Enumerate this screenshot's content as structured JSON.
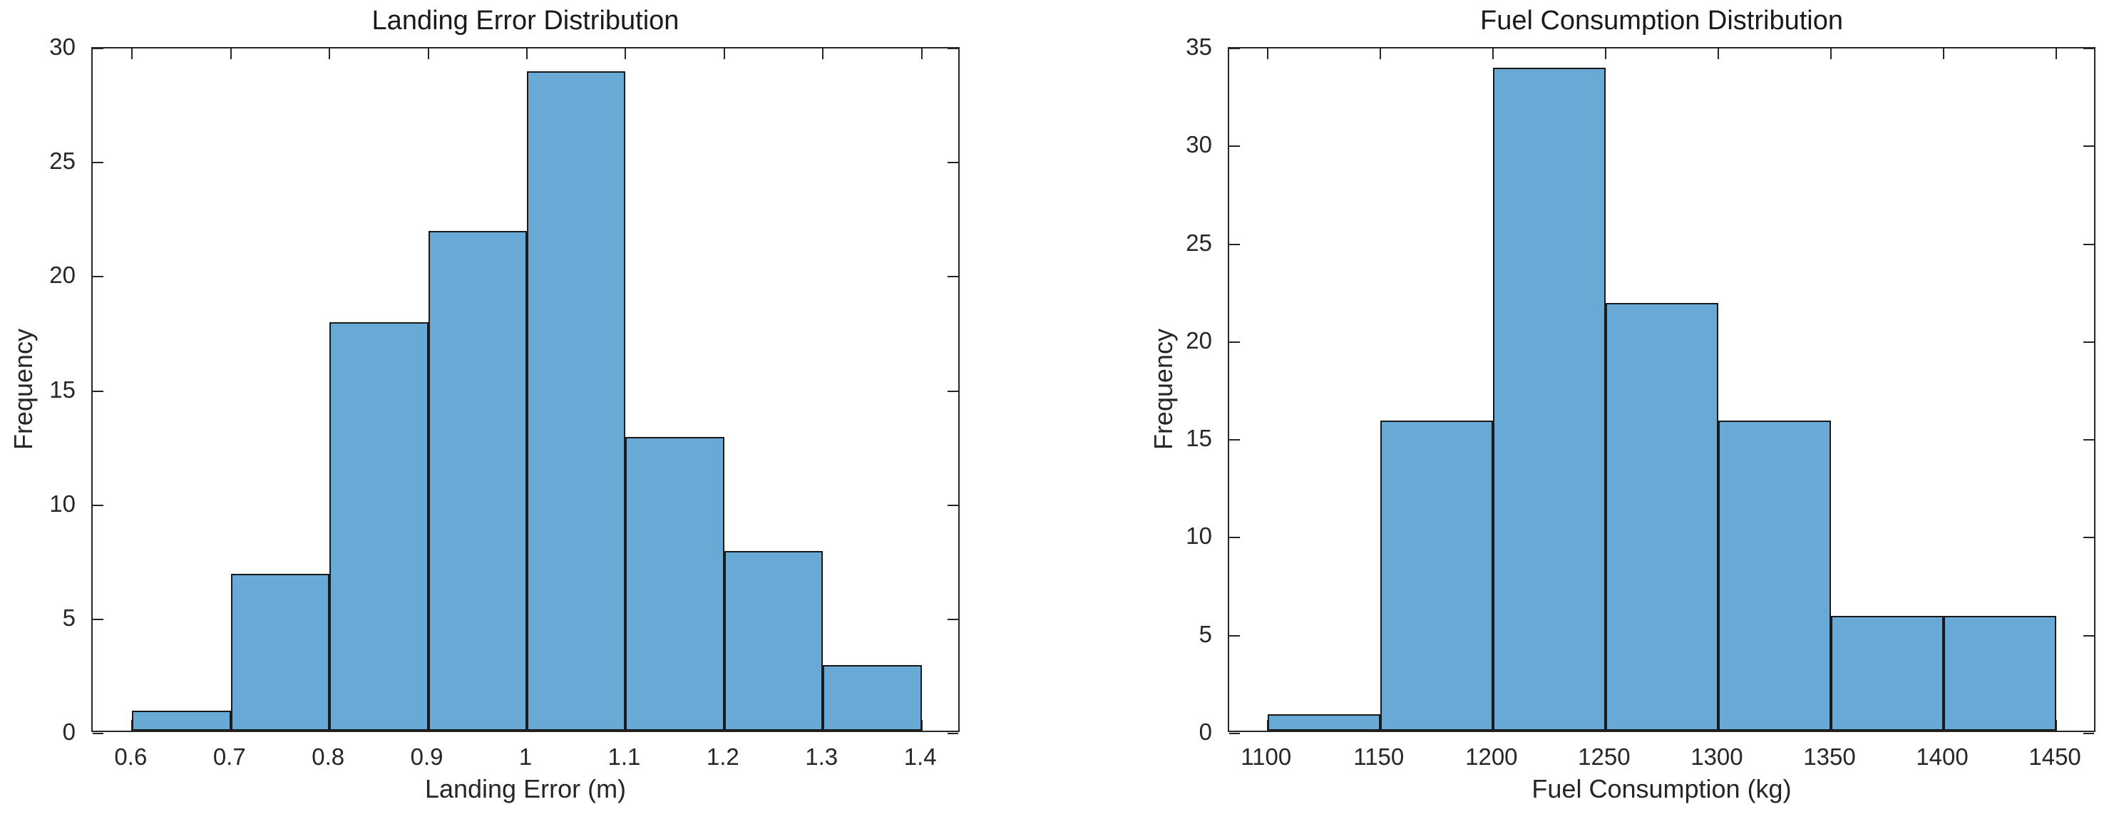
{
  "figure": {
    "background": "#ffffff",
    "axis_color": "#262626",
    "tick_label_color": "#262626",
    "title_color": "#1a1a1a"
  },
  "chart_data": [
    {
      "type": "bar",
      "subtype": "histogram",
      "title": "Landing Error Distribution",
      "xlabel": "Landing Error (m)",
      "ylabel": "Frequency",
      "bin_edges": [
        0.6,
        0.7,
        0.8,
        0.9,
        1.0,
        1.1,
        1.2,
        1.3,
        1.4
      ],
      "counts": [
        1,
        7,
        18,
        22,
        29,
        13,
        8,
        3
      ],
      "xtick_values": [
        0.6,
        0.7,
        0.8,
        0.9,
        1,
        1.1,
        1.2,
        1.3,
        1.4
      ],
      "xtick_labels": [
        "0.6",
        "0.7",
        "0.8",
        "0.9",
        "1",
        "1.1",
        "1.2",
        "1.3",
        "1.4"
      ],
      "ytick_values": [
        0,
        5,
        10,
        15,
        20,
        25,
        30
      ],
      "ytick_labels": [
        "0",
        "5",
        "10",
        "15",
        "20",
        "25",
        "30"
      ],
      "xlim": [
        0.56,
        1.44
      ],
      "ylim": [
        0,
        30
      ],
      "grid": false,
      "legend": null,
      "bar_fill": "#69A9D6",
      "bar_edge": "#1a1a1a"
    },
    {
      "type": "bar",
      "subtype": "histogram",
      "title": "Fuel Consumption Distribution",
      "xlabel": "Fuel Consumption (kg)",
      "ylabel": "Frequency",
      "bin_edges": [
        1100,
        1150,
        1200,
        1250,
        1300,
        1350,
        1400,
        1450
      ],
      "counts": [
        1,
        16,
        34,
        22,
        16,
        6,
        6
      ],
      "xtick_values": [
        1100,
        1150,
        1200,
        1250,
        1300,
        1350,
        1400,
        1450
      ],
      "xtick_labels": [
        "1100",
        "1150",
        "1200",
        "1250",
        "1300",
        "1350",
        "1400",
        "1450"
      ],
      "ytick_values": [
        0,
        5,
        10,
        15,
        20,
        25,
        30,
        35
      ],
      "ytick_labels": [
        "0",
        "5",
        "10",
        "15",
        "20",
        "25",
        "30",
        "35"
      ],
      "xlim": [
        1083,
        1468
      ],
      "ylim": [
        0,
        35
      ],
      "grid": false,
      "legend": null,
      "bar_fill": "#69A9D6",
      "bar_edge": "#1a1a1a"
    }
  ]
}
